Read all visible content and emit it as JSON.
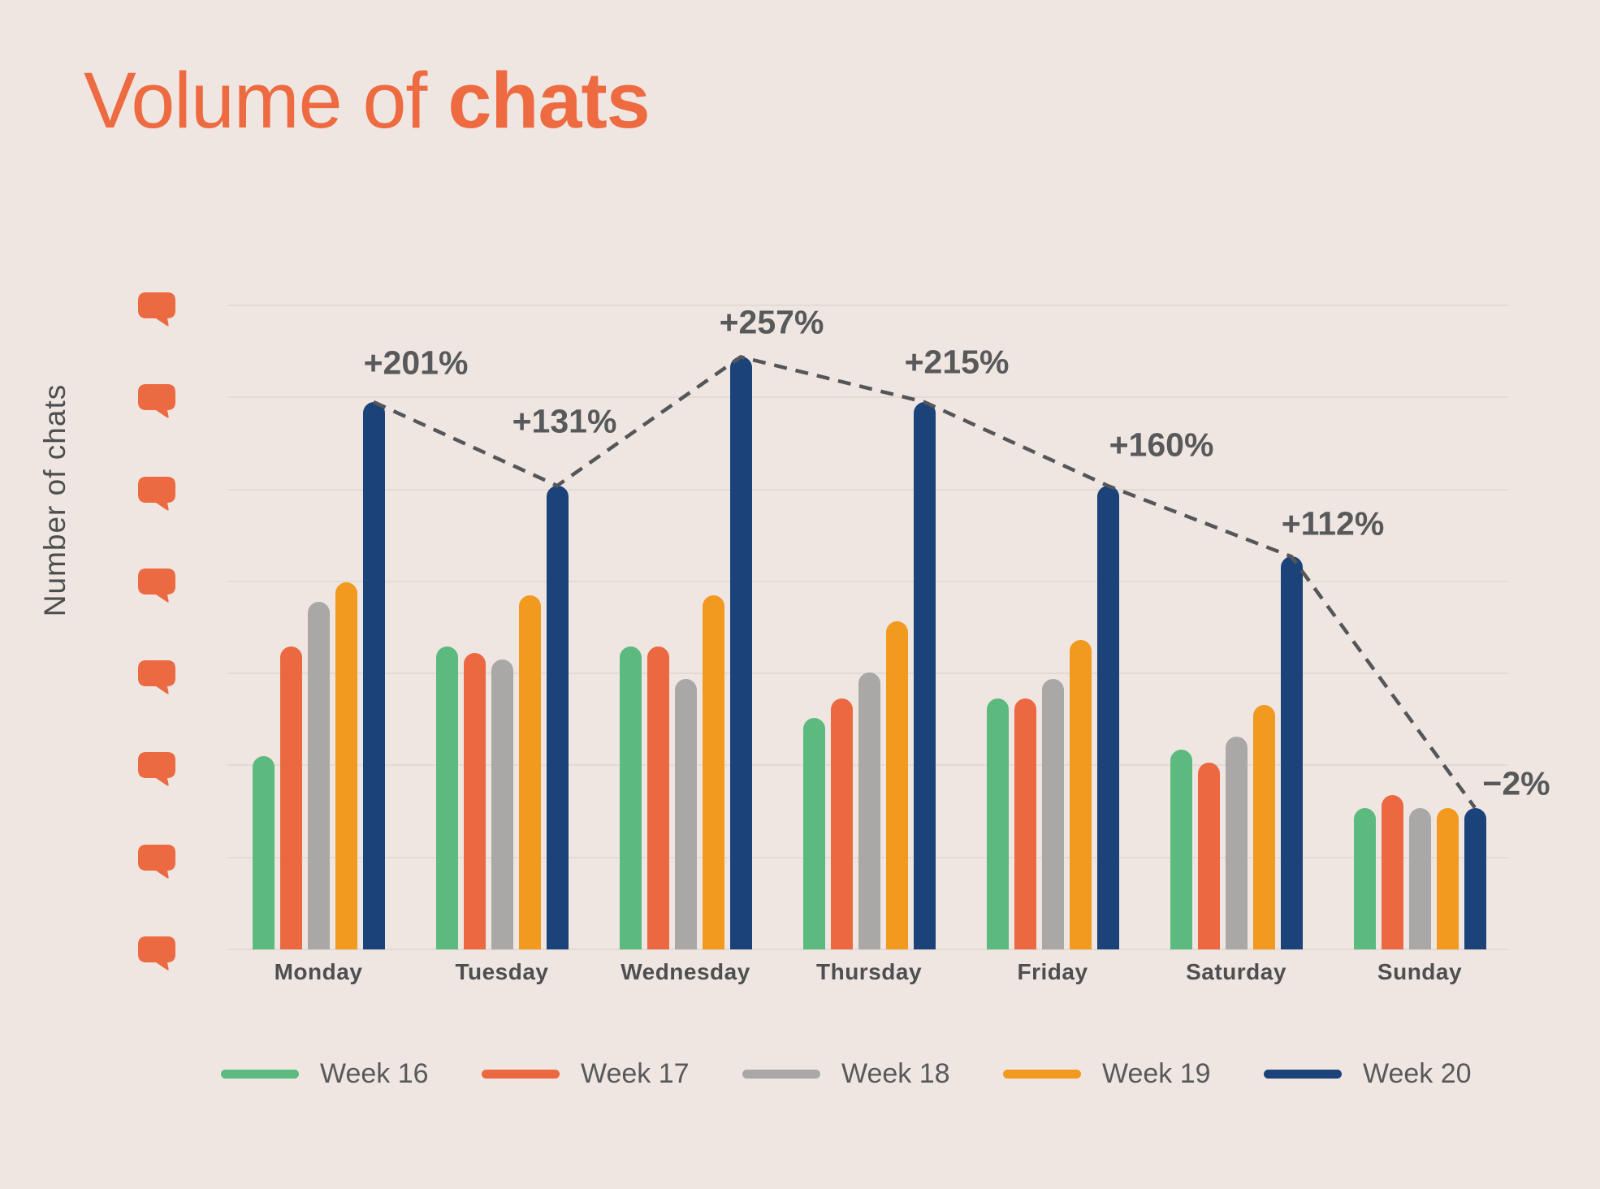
{
  "title": {
    "prefix": "Volume of ",
    "highlight": "chats"
  },
  "y_axis": {
    "label": "Number of chats",
    "tick_icon": "speech-bubble-icon",
    "numeric_labels_visible": false
  },
  "colors": {
    "background": "#EFE6E2",
    "title": "#EE6A41",
    "icon_orange": "#EC6A41",
    "gridline": "#E2DAD5",
    "annotation_gray": "#58595B",
    "day_label_gray": "#4E4F51",
    "week16_green": "#5CBA7E",
    "week17_orange": "#EC6840",
    "week18_gray": "#A9A8A6",
    "week19_amber": "#F2991F",
    "week20_navy": "#1B4279"
  },
  "chart_data": {
    "type": "bar",
    "title": "Volume of chats",
    "ylabel": "Number of chats",
    "xlabel": "",
    "ylim": [
      0,
      100
    ],
    "grid": true,
    "legend_position": "bottom",
    "units": "relative (no numeric y ticks shown; 100 = top gridline)",
    "categories": [
      "Monday",
      "Tuesday",
      "Wednesday",
      "Thursday",
      "Friday",
      "Saturday",
      "Sunday"
    ],
    "series": [
      {
        "name": "Week 16",
        "color": "#5CBA7E",
        "values": [
          30,
          47,
          47,
          36,
          39,
          31,
          22
        ]
      },
      {
        "name": "Week 17",
        "color": "#EC6840",
        "values": [
          47,
          46,
          47,
          39,
          39,
          29,
          24
        ]
      },
      {
        "name": "Week 18",
        "color": "#A9A8A6",
        "values": [
          54,
          45,
          42,
          43,
          42,
          33,
          22
        ]
      },
      {
        "name": "Week 19",
        "color": "#F2991F",
        "values": [
          57,
          55,
          55,
          51,
          48,
          38,
          22
        ]
      },
      {
        "name": "Week 20",
        "color": "#1B4279",
        "values": [
          85,
          72,
          92,
          85,
          72,
          61,
          22
        ]
      }
    ],
    "annotations": {
      "attached_to_series": "Week 20",
      "style": "dashed-trend-line",
      "labels": [
        "+201%",
        "+131%",
        "+257%",
        "+215%",
        "+160%",
        "+112%",
        "−2%"
      ]
    }
  },
  "legend": {
    "items": [
      {
        "label": "Week 16",
        "color": "#5CBA7E"
      },
      {
        "label": "Week 17",
        "color": "#EC6840"
      },
      {
        "label": "Week 18",
        "color": "#A9A8A6"
      },
      {
        "label": "Week 19",
        "color": "#F2991F"
      },
      {
        "label": "Week 20",
        "color": "#1B4279"
      }
    ]
  }
}
